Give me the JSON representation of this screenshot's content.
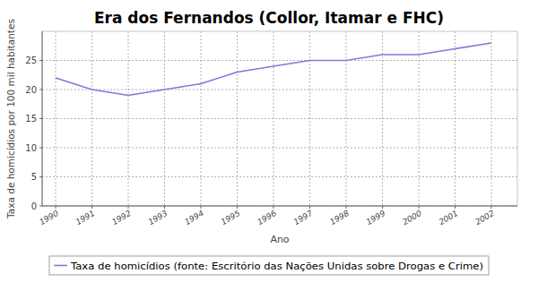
{
  "chart_data": {
    "type": "line",
    "title": "Era dos Fernandos (Collor, Itamar e FHC)",
    "x_label": "Ano",
    "y_label": "Taxa de homicídios por 100 mil habitantes",
    "categories": [
      "1990",
      "1991",
      "1992",
      "1993",
      "1994",
      "1995",
      "1996",
      "1997",
      "1998",
      "1999",
      "2000",
      "2001",
      "2002"
    ],
    "series": [
      {
        "name": "Taxa de homicídios (fonte: Escritório das Nações Unidas sobre Drogas e Crime)",
        "color": "#7b7bdb",
        "values": [
          22,
          20,
          19,
          20,
          21,
          23,
          24,
          25,
          25,
          26,
          26,
          27,
          28
        ]
      }
    ],
    "ylim": [
      0,
      30
    ],
    "yticks": [
      0,
      5,
      10,
      15,
      20,
      25
    ],
    "grid": true,
    "legend": "bottom"
  }
}
